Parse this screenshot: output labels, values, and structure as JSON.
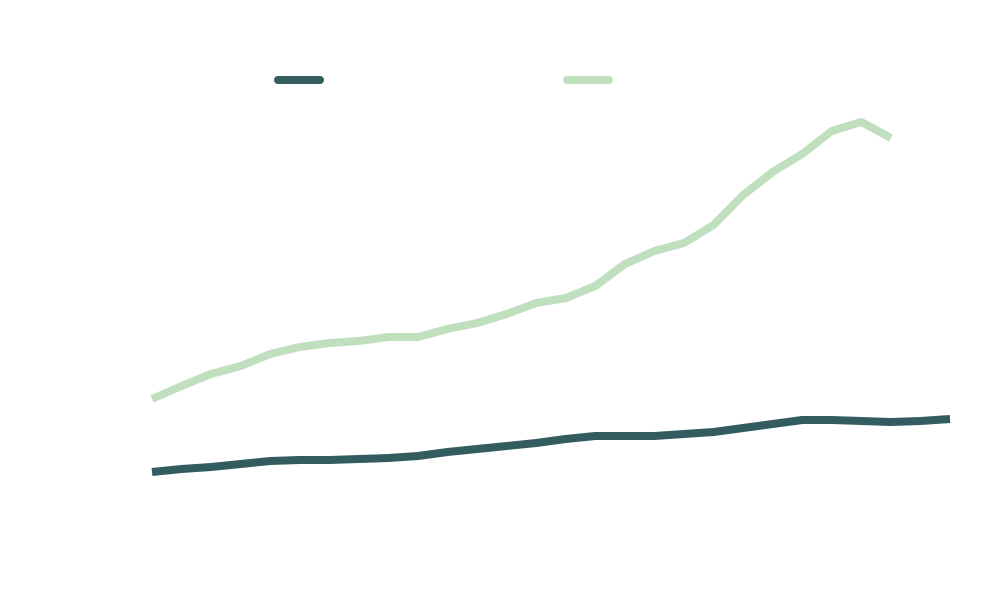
{
  "chart_data": {
    "type": "line",
    "categories": [
      null,
      null,
      null,
      null,
      null,
      null,
      null,
      null,
      null,
      null,
      null,
      null,
      null,
      null,
      null,
      null,
      null,
      null,
      null,
      null,
      null,
      null,
      null,
      null,
      null,
      null,
      null,
      null
    ],
    "series": [
      {
        "color": "#335c60",
        "values": [
          14.5,
          15.25,
          15.75,
          16.5,
          17.25,
          17.5,
          17.5,
          17.75,
          18,
          18.5,
          19.5,
          20.25,
          21,
          21.75,
          22.75,
          23.5,
          23.5,
          23.5,
          24,
          24.5,
          25.5,
          26.5,
          27.5,
          27.5,
          27.25,
          27,
          27.25,
          27.75
        ]
      },
      {
        "color": "#c0dfbf",
        "values": [
          32.75,
          36,
          39,
          41,
          44,
          45.75,
          46.75,
          47.25,
          48.25,
          48.25,
          50.25,
          51.75,
          54,
          56.75,
          58,
          61,
          66.5,
          69.75,
          71.75,
          76.25,
          83.75,
          89.5,
          94,
          99.75,
          102,
          98,
          null,
          null
        ]
      }
    ],
    "ylim": [
      0,
      110
    ]
  }
}
